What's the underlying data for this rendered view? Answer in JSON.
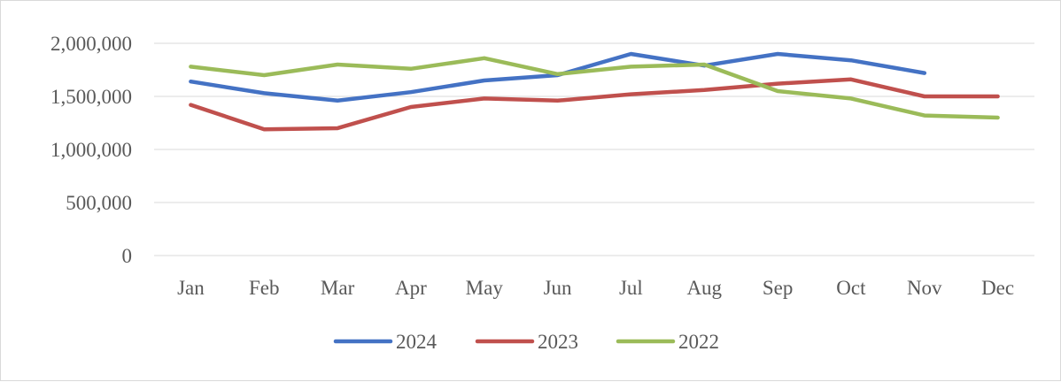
{
  "chart_data": {
    "type": "line",
    "title": "",
    "xlabel": "",
    "ylabel": "",
    "categories": [
      "Jan",
      "Feb",
      "Mar",
      "Apr",
      "May",
      "Jun",
      "Jul",
      "Aug",
      "Sep",
      "Oct",
      "Nov",
      "Dec"
    ],
    "ylim": [
      0,
      2000000
    ],
    "yticks": [
      0,
      500000,
      1000000,
      1500000,
      2000000
    ],
    "ytick_labels": [
      "0",
      "500,000",
      "1,000,000",
      "1,500,000",
      "2,000,000"
    ],
    "grid": "horizontal",
    "legend_position": "bottom",
    "series": [
      {
        "name": "2024",
        "color": "#4472C4",
        "values": [
          1640000,
          1530000,
          1460000,
          1540000,
          1650000,
          1700000,
          1900000,
          1790000,
          1900000,
          1840000,
          1720000,
          null
        ]
      },
      {
        "name": "2023",
        "color": "#C0504D",
        "values": [
          1420000,
          1190000,
          1200000,
          1400000,
          1480000,
          1460000,
          1520000,
          1560000,
          1620000,
          1660000,
          1500000,
          1500000
        ]
      },
      {
        "name": "2022",
        "color": "#9BBB59",
        "values": [
          1780000,
          1700000,
          1800000,
          1760000,
          1860000,
          1710000,
          1780000,
          1800000,
          1550000,
          1480000,
          1320000,
          1300000
        ]
      }
    ]
  }
}
